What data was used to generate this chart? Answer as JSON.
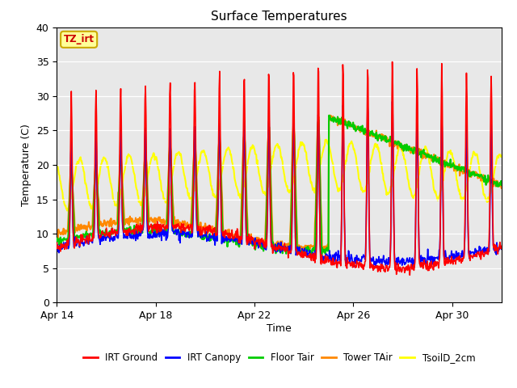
{
  "title": "Surface Temperatures",
  "xlabel": "Time",
  "ylabel": "Temperature (C)",
  "ylim": [
    0,
    40
  ],
  "x_tick_positions": [
    0,
    4,
    8,
    12,
    16
  ],
  "x_tick_labels": [
    "Apr 14",
    "Apr 18",
    "Apr 22",
    "Apr 26",
    "Apr 30"
  ],
  "plot_bg": "#e8e8e8",
  "fig_bg": "#ffffff",
  "series": {
    "IRT Ground": {
      "color": "#ff0000",
      "lw": 1.2
    },
    "IRT Canopy": {
      "color": "#0000ff",
      "lw": 1.2
    },
    "Floor Tair": {
      "color": "#00cc00",
      "lw": 1.5
    },
    "Tower TAir": {
      "color": "#ff8800",
      "lw": 1.5
    },
    "TsoilD_2cm": {
      "color": "#ffff00",
      "lw": 1.5
    }
  },
  "tz_label": "TZ_irt",
  "tz_label_color": "#cc0000",
  "tz_box_facecolor": "#ffff99",
  "tz_box_edgecolor": "#ccaa00",
  "yticks": [
    0,
    5,
    10,
    15,
    20,
    25,
    30,
    35,
    40
  ]
}
